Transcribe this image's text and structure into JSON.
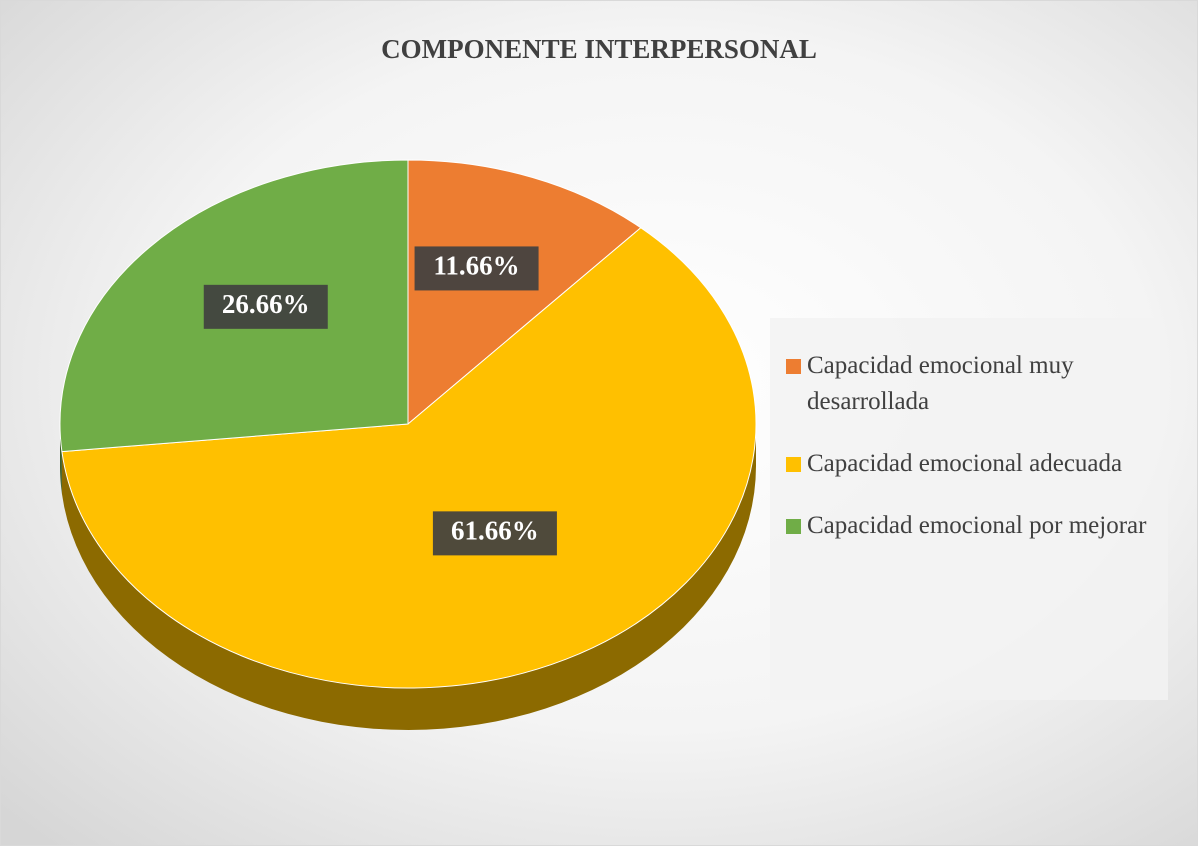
{
  "chart_data": {
    "type": "pie",
    "title": "COMPONENTE INTERPERSONAL",
    "categories": [
      "Capacidad emocional muy desarrollada",
      "Capacidad emocional adecuada",
      "Capacidad emocional por mejorar"
    ],
    "values": [
      11.66,
      61.66,
      26.66
    ],
    "value_labels": [
      "11.66%",
      "61.66%",
      "26.66%"
    ],
    "colors": [
      "#ED7D31",
      "#FFC000",
      "#70AD47"
    ],
    "legend": "right"
  }
}
